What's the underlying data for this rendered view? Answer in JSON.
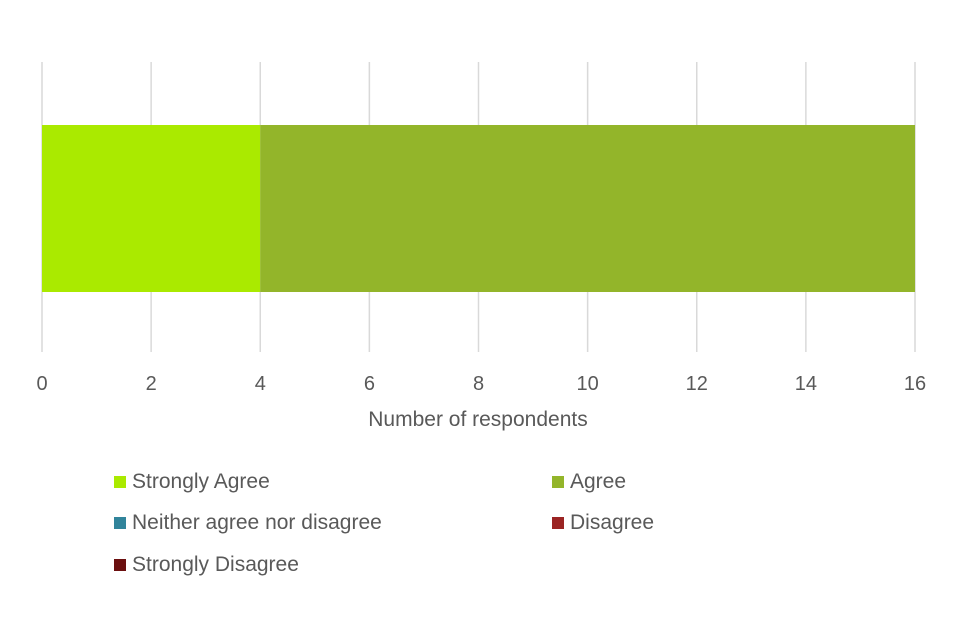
{
  "chart_data": {
    "type": "bar",
    "orientation": "horizontal",
    "stacked": true,
    "categories": [
      ""
    ],
    "series": [
      {
        "name": "Strongly Agree",
        "values": [
          4
        ],
        "color": "#aaea00"
      },
      {
        "name": "Agree",
        "values": [
          12
        ],
        "color": "#93b52a"
      },
      {
        "name": "Neither agree nor disagree",
        "values": [
          0
        ],
        "color": "#31849b"
      },
      {
        "name": "Disagree",
        "values": [
          0
        ],
        "color": "#9b2423"
      },
      {
        "name": "Strongly Disagree",
        "values": [
          0
        ],
        "color": "#6b0f0f"
      }
    ],
    "xlabel": "Number of respondents",
    "ylabel": "",
    "xlim": [
      0,
      16
    ],
    "xticks": [
      "0",
      "2",
      "4",
      "6",
      "8",
      "10",
      "12",
      "14",
      "16"
    ],
    "grid": "vertical",
    "legend_position": "bottom"
  }
}
